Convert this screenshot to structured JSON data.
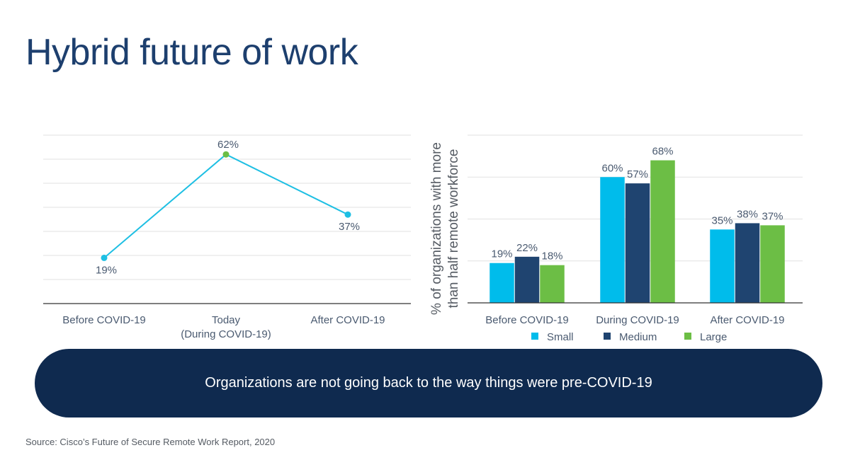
{
  "title": "Hybrid future of work",
  "banner_text": "Organizations are not going back to the way things were pre-COVID-19",
  "source": "Source: Cisco’s Future of Secure Remote Work Report, 2020",
  "colors": {
    "small": "#00bceb",
    "medium": "#1f4470",
    "large": "#6cbe45",
    "line": "#1ebfe3",
    "peak_marker": "#6cbe45",
    "title": "#1d3f6e",
    "banner": "#0f2a4f"
  },
  "chart_data": [
    {
      "type": "line",
      "title": "",
      "xlabel": "",
      "ylabel": "",
      "categories": [
        "Before COVID-19",
        "Today\n(During COVID-19)",
        "After COVID-19"
      ],
      "category_lines": [
        [
          "Before COVID-19"
        ],
        [
          "Today",
          "(During COVID-19)"
        ],
        [
          "After COVID-19"
        ]
      ],
      "values": [
        19,
        62,
        37
      ],
      "labels": [
        "19%",
        "62%",
        "37%"
      ],
      "label_positions": [
        "below",
        "above",
        "below"
      ],
      "ylim": [
        0,
        70
      ],
      "grid": true,
      "grid_step": 10,
      "legend": "none"
    },
    {
      "type": "bar",
      "title": "",
      "xlabel": "",
      "ylabel": "% of organizations with more than half remote workforce",
      "ylabel_lines": [
        "% of organizations with more",
        "than half remote workforce"
      ],
      "categories": [
        "Before COVID-19",
        "During COVID-19",
        "After COVID-19"
      ],
      "series": [
        {
          "name": "Small",
          "values": [
            19,
            60,
            35
          ],
          "labels": [
            "19%",
            "60%",
            "35%"
          ]
        },
        {
          "name": "Medium",
          "values": [
            22,
            57,
            38
          ],
          "labels": [
            "22%",
            "57%",
            "38%"
          ]
        },
        {
          "name": "Large",
          "values": [
            18,
            68,
            37
          ],
          "labels": [
            "18%",
            "68%",
            "37%"
          ]
        }
      ],
      "ylim": [
        0,
        80
      ],
      "grid": true,
      "grid_step": 20,
      "legend": "bottom"
    }
  ]
}
